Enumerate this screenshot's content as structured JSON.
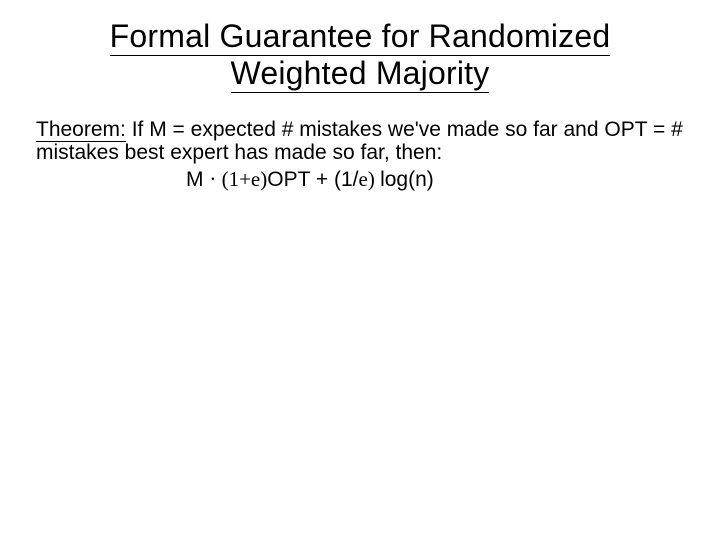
{
  "colors": {
    "background": "#ffffff",
    "text": "#000000",
    "underline": "#000000"
  },
  "typography": {
    "title_fontsize": 32,
    "body_fontsize": 21,
    "font_family_main": "Comic Sans MS",
    "font_family_math": "Times New Roman"
  },
  "title": {
    "line1": "Formal Guarantee for Randomized",
    "line2": "Weighted Majority"
  },
  "theorem": {
    "label": "Theorem:",
    "text_part1": " If M = expected # mistakes we've made so far and OPT = # mistakes best expert has made so far, then:"
  },
  "formula": {
    "lhs": "M ",
    "leq": "· ",
    "term1_open": "(1+",
    "epsilon1": "e",
    "term1_close": ")",
    "opt": "OPT",
    "plus": " + (1/",
    "epsilon2": "e",
    "close2": ") ",
    "logn": "log(n)"
  }
}
